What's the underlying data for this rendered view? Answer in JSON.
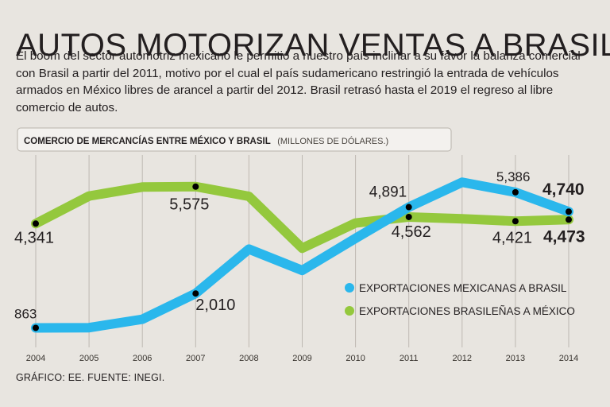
{
  "header": {
    "title": "AUTOS MOTORIZAN VENTAS A BRASIL",
    "subtitle": "El boom del sector automotriz mexicano le permitió a nuestro país inclinar a su favor la balanza comercial con Brasil a partir del 2011, motivo por el cual el país sudamericano restringió la entrada de vehículos armados en México libres de arancel a partir del 2012. Brasil retrasó hasta el 2019 el regreso al libre comercio de autos."
  },
  "footer": {
    "source": "GRÁFICO: EE. FUENTE: INEGI."
  },
  "chart_data": {
    "type": "line",
    "title": "COMERCIO DE MERCANCÍAS ENTRE MÉXICO Y BRASIL",
    "units": "(MILLONES DE DÓLARES.)",
    "xlabel": "",
    "ylabel": "",
    "ylim": [
      0,
      7000
    ],
    "grid": "vertical",
    "legend_position": "bottom-right",
    "x": [
      "2004",
      "2005",
      "2006",
      "2007",
      "2008",
      "2009",
      "2010",
      "2011",
      "2012",
      "2013",
      "2014"
    ],
    "series": [
      {
        "name": "EXPORTACIONES MEXICANAS A BRASIL",
        "color": "#2ab7ec",
        "values": [
          863,
          870,
          1150,
          2010,
          3490,
          2780,
          3850,
          4891,
          5720,
          5386,
          4740
        ],
        "labels": [
          {
            "index": 0,
            "text": "863",
            "bold": false
          },
          {
            "index": 3,
            "text": "2,010",
            "bold": false
          },
          {
            "index": 7,
            "text": "4,891",
            "bold": false
          },
          {
            "index": 9,
            "text": "5,386",
            "bold": false
          },
          {
            "index": 10,
            "text": "4,740",
            "bold": true
          }
        ]
      },
      {
        "name": "EXPORTACIONES BRASILEÑAS A MÉXICO",
        "color": "#94c83d",
        "values": [
          4341,
          5260,
          5560,
          5575,
          5250,
          3520,
          4360,
          4562,
          4500,
          4421,
          4473
        ],
        "labels": [
          {
            "index": 0,
            "text": "4,341",
            "bold": false
          },
          {
            "index": 3,
            "text": "5,575",
            "bold": false
          },
          {
            "index": 7,
            "text": "4,562",
            "bold": false
          },
          {
            "index": 9,
            "text": "4,421",
            "bold": false
          },
          {
            "index": 10,
            "text": "4,473",
            "bold": true
          }
        ]
      }
    ]
  },
  "colors": {
    "background": "#e8e5e0",
    "grid": "#bdb8b2",
    "marker": "#000000"
  }
}
